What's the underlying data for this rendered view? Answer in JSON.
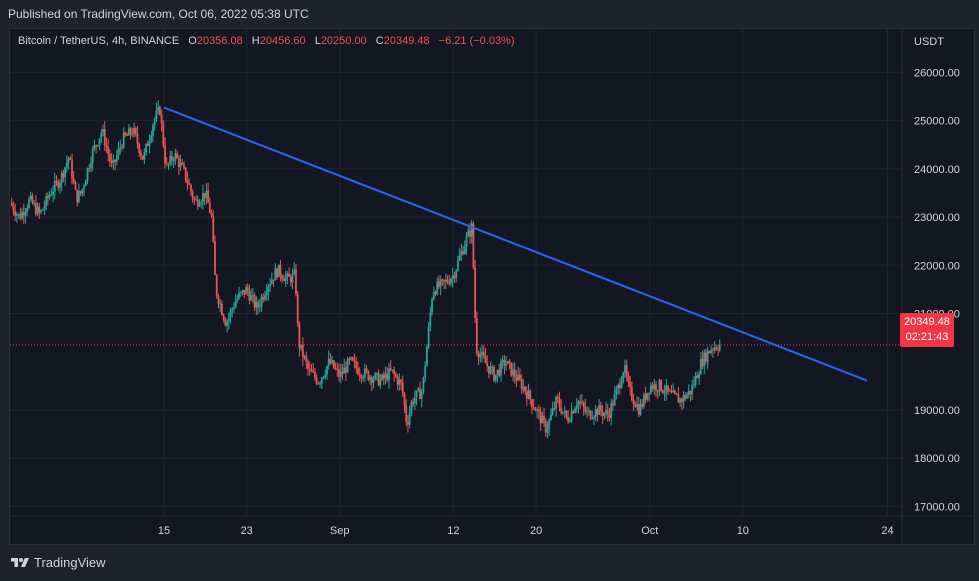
{
  "header": {
    "published_text": "Published on TradingView.com, Oct 06, 2022 05:38 UTC"
  },
  "legend": {
    "symbol": "Bitcoin / TetherUS, 4h, BINANCE",
    "o_label": "O",
    "o_value": "20356.08",
    "h_label": "H",
    "h_value": "20456.60",
    "l_label": "L",
    "l_value": "20250.00",
    "c_label": "C",
    "c_value": "20349.48",
    "change": "−6.21 (−0.03%)"
  },
  "price_badge": {
    "price": "20349.48",
    "countdown": "02:21:43"
  },
  "footer": {
    "brand": "TradingView",
    "logo_icon": "tradingview-logo-icon"
  },
  "colors": {
    "up": "#26a69a",
    "down": "#ef5350",
    "trendline": "#2962ff",
    "badge": "#f23645"
  },
  "chart_data": {
    "type": "candlestick",
    "currency": "USDT",
    "y_ticks": [
      {
        "value": 26000,
        "label": "26000.00"
      },
      {
        "value": 25000,
        "label": "25000.00"
      },
      {
        "value": 24000,
        "label": "24000.00"
      },
      {
        "value": 23000,
        "label": "23000.00"
      },
      {
        "value": 22000,
        "label": "22000.00"
      },
      {
        "value": 21000,
        "label": "21000.00"
      },
      {
        "value": 19000,
        "label": "19000.00"
      },
      {
        "value": 18000,
        "label": "18000.00"
      },
      {
        "value": 17000,
        "label": "17000.00"
      }
    ],
    "ylim": [
      16800,
      26900
    ],
    "x_ticks": [
      {
        "day": 15,
        "label": "15"
      },
      {
        "day": 23,
        "label": "23"
      },
      {
        "day": 32,
        "label": "Sep"
      },
      {
        "day": 43,
        "label": "12"
      },
      {
        "day": 51,
        "label": "20"
      },
      {
        "day": 62,
        "label": "Oct"
      },
      {
        "day": 71,
        "label": "10"
      },
      {
        "day": 85,
        "label": "24"
      }
    ],
    "x_domain_note": "days counted from Aug 1, 2022",
    "xlim": [
      0.1,
      86.4
    ],
    "last_price": 20349.48,
    "trendline": {
      "start": {
        "day": 15,
        "price": 25270
      },
      "end": {
        "day": 83,
        "price": 19610
      }
    },
    "price_path": [
      [
        0.1,
        23300
      ],
      [
        1,
        23000
      ],
      [
        2,
        23350
      ],
      [
        3,
        23050
      ],
      [
        4,
        23500
      ],
      [
        5,
        23800
      ],
      [
        5.8,
        24250
      ],
      [
        6.5,
        23400
      ],
      [
        7,
        23500
      ],
      [
        8,
        24300
      ],
      [
        9,
        24800
      ],
      [
        10,
        24000
      ],
      [
        11,
        24600
      ],
      [
        12,
        24800
      ],
      [
        13,
        24200
      ],
      [
        14,
        25000
      ],
      [
        14.6,
        25230
      ],
      [
        15.2,
        24000
      ],
      [
        16,
        24300
      ],
      [
        17,
        23900
      ],
      [
        18,
        23300
      ],
      [
        19,
        23500
      ],
      [
        19.6,
        23000
      ],
      [
        20,
        21500
      ],
      [
        21,
        20800
      ],
      [
        22,
        21300
      ],
      [
        23,
        21500
      ],
      [
        24,
        21100
      ],
      [
        25,
        21600
      ],
      [
        26,
        21900
      ],
      [
        27,
        21700
      ],
      [
        27.7,
        21800
      ],
      [
        28,
        20400
      ],
      [
        29,
        19800
      ],
      [
        30,
        19600
      ],
      [
        31,
        20000
      ],
      [
        32,
        19700
      ],
      [
        33,
        20000
      ],
      [
        34,
        19800
      ],
      [
        35,
        19700
      ],
      [
        36,
        19600
      ],
      [
        37,
        19800
      ],
      [
        38,
        19500
      ],
      [
        38.5,
        18700
      ],
      [
        39,
        19200
      ],
      [
        40,
        19400
      ],
      [
        41,
        21500
      ],
      [
        42,
        21600
      ],
      [
        43,
        21800
      ],
      [
        44,
        22400
      ],
      [
        44.8,
        22800
      ],
      [
        45.2,
        20300
      ],
      [
        46,
        20000
      ],
      [
        47,
        19700
      ],
      [
        48,
        20000
      ],
      [
        49,
        19700
      ],
      [
        50,
        19400
      ],
      [
        51,
        19000
      ],
      [
        52,
        18600
      ],
      [
        53,
        19200
      ],
      [
        54,
        18800
      ],
      [
        55,
        19200
      ],
      [
        56,
        18900
      ],
      [
        57,
        19000
      ],
      [
        58,
        18900
      ],
      [
        59,
        19500
      ],
      [
        59.5,
        19900
      ],
      [
        60,
        19400
      ],
      [
        61,
        19000
      ],
      [
        62,
        19500
      ],
      [
        63,
        19500
      ],
      [
        64,
        19300
      ],
      [
        65,
        19200
      ],
      [
        66,
        19400
      ],
      [
        67,
        20000
      ],
      [
        68,
        20300
      ],
      [
        68.8,
        20349
      ]
    ]
  }
}
